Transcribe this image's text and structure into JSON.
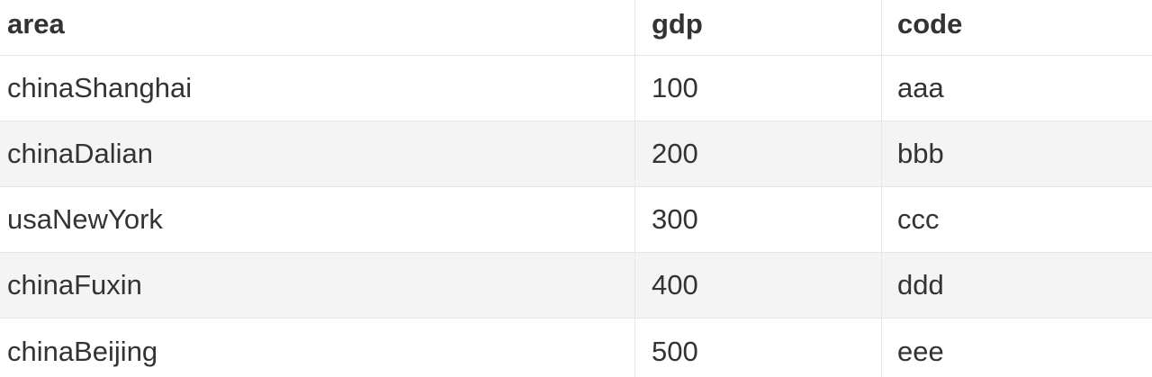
{
  "table": {
    "columns": [
      "area",
      "gdp",
      "code"
    ],
    "rows": [
      [
        "chinaShanghai",
        "100",
        "aaa"
      ],
      [
        "chinaDalian",
        "200",
        "bbb"
      ],
      [
        "usaNewYork",
        "300",
        "ccc"
      ],
      [
        "chinaFuxin",
        "400",
        "ddd"
      ],
      [
        "chinaBeijing",
        "500",
        "eee"
      ]
    ]
  }
}
